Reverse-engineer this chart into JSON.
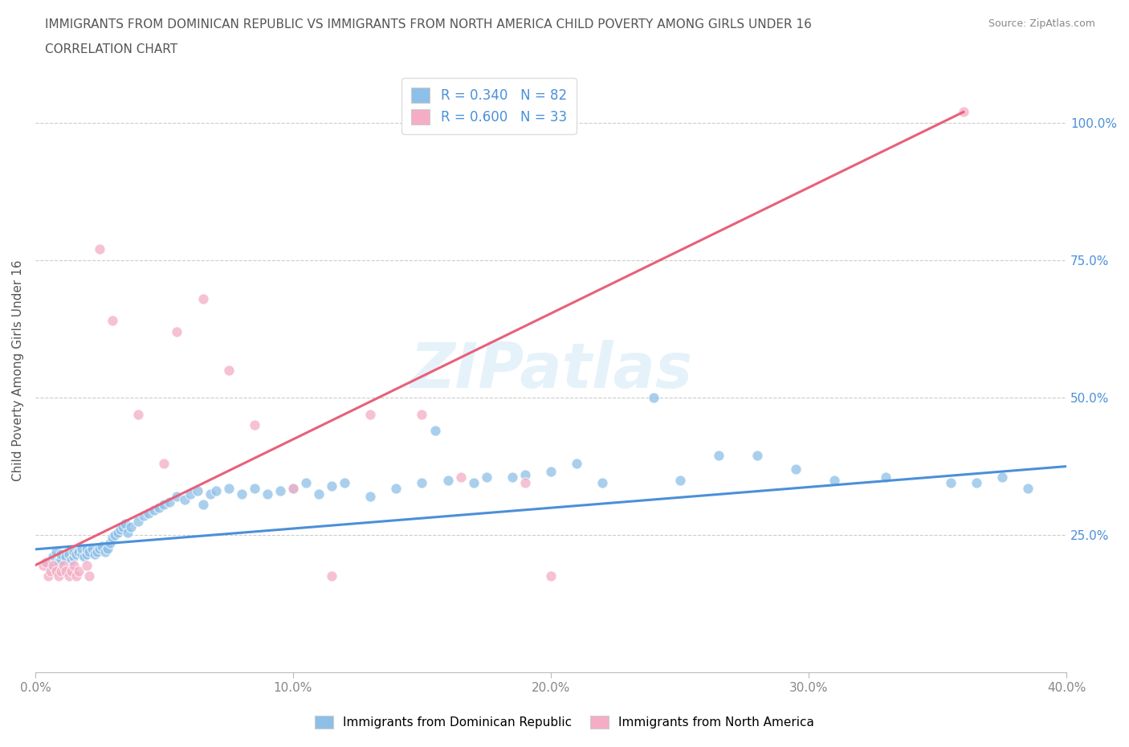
{
  "title_line1": "IMMIGRANTS FROM DOMINICAN REPUBLIC VS IMMIGRANTS FROM NORTH AMERICA CHILD POVERTY AMONG GIRLS UNDER 16",
  "title_line2": "CORRELATION CHART",
  "source": "Source: ZipAtlas.com",
  "ylabel": "Child Poverty Among Girls Under 16",
  "xlim": [
    0.0,
    0.4
  ],
  "ylim": [
    0.0,
    1.1
  ],
  "xtick_labels": [
    "0.0%",
    "10.0%",
    "20.0%",
    "30.0%",
    "40.0%"
  ],
  "xtick_vals": [
    0.0,
    0.1,
    0.2,
    0.3,
    0.4
  ],
  "ytick_labels": [
    "25.0%",
    "50.0%",
    "75.0%",
    "100.0%"
  ],
  "ytick_vals": [
    0.25,
    0.5,
    0.75,
    1.0
  ],
  "blue_color": "#8dc0e8",
  "pink_color": "#f4adc4",
  "blue_line_color": "#4a90d9",
  "pink_line_color": "#e8607a",
  "legend_text_color": "#4a90d9",
  "title_color": "#555555",
  "watermark": "ZIPatlas",
  "legend_R1": "R = 0.340",
  "legend_N1": "N = 82",
  "legend_R2": "R = 0.600",
  "legend_N2": "N = 33",
  "legend_label1": "Immigrants from Dominican Republic",
  "legend_label2": "Immigrants from North America",
  "blue_line": [
    0.0,
    0.224,
    0.4,
    0.375
  ],
  "pink_line": [
    0.0,
    0.195,
    0.36,
    1.02
  ],
  "blue_scatter_x": [
    0.005,
    0.007,
    0.008,
    0.009,
    0.01,
    0.01,
    0.012,
    0.013,
    0.014,
    0.015,
    0.015,
    0.016,
    0.017,
    0.018,
    0.018,
    0.019,
    0.02,
    0.02,
    0.021,
    0.022,
    0.023,
    0.024,
    0.025,
    0.026,
    0.027,
    0.028,
    0.029,
    0.03,
    0.031,
    0.032,
    0.033,
    0.034,
    0.035,
    0.036,
    0.037,
    0.04,
    0.042,
    0.044,
    0.046,
    0.048,
    0.05,
    0.052,
    0.055,
    0.058,
    0.06,
    0.063,
    0.065,
    0.068,
    0.07,
    0.075,
    0.08,
    0.085,
    0.09,
    0.095,
    0.1,
    0.105,
    0.11,
    0.115,
    0.12,
    0.13,
    0.14,
    0.15,
    0.155,
    0.16,
    0.17,
    0.175,
    0.185,
    0.19,
    0.2,
    0.21,
    0.22,
    0.24,
    0.25,
    0.265,
    0.28,
    0.295,
    0.31,
    0.33,
    0.355,
    0.365,
    0.375,
    0.385
  ],
  "blue_scatter_y": [
    0.195,
    0.21,
    0.22,
    0.2,
    0.205,
    0.215,
    0.21,
    0.215,
    0.205,
    0.21,
    0.22,
    0.215,
    0.22,
    0.215,
    0.225,
    0.21,
    0.215,
    0.225,
    0.22,
    0.225,
    0.215,
    0.22,
    0.225,
    0.23,
    0.22,
    0.225,
    0.235,
    0.245,
    0.25,
    0.255,
    0.26,
    0.265,
    0.27,
    0.255,
    0.265,
    0.275,
    0.285,
    0.29,
    0.295,
    0.3,
    0.305,
    0.31,
    0.32,
    0.315,
    0.325,
    0.33,
    0.305,
    0.325,
    0.33,
    0.335,
    0.325,
    0.335,
    0.325,
    0.33,
    0.335,
    0.345,
    0.325,
    0.34,
    0.345,
    0.32,
    0.335,
    0.345,
    0.44,
    0.35,
    0.345,
    0.355,
    0.355,
    0.36,
    0.365,
    0.38,
    0.345,
    0.5,
    0.35,
    0.395,
    0.395,
    0.37,
    0.35,
    0.355,
    0.345,
    0.345,
    0.355,
    0.335
  ],
  "pink_scatter_x": [
    0.003,
    0.004,
    0.005,
    0.006,
    0.007,
    0.008,
    0.009,
    0.01,
    0.011,
    0.012,
    0.013,
    0.014,
    0.015,
    0.016,
    0.017,
    0.02,
    0.021,
    0.025,
    0.03,
    0.04,
    0.05,
    0.055,
    0.065,
    0.075,
    0.085,
    0.1,
    0.115,
    0.13,
    0.15,
    0.165,
    0.19,
    0.2,
    0.36
  ],
  "pink_scatter_y": [
    0.195,
    0.2,
    0.175,
    0.185,
    0.195,
    0.185,
    0.175,
    0.185,
    0.195,
    0.185,
    0.175,
    0.185,
    0.195,
    0.175,
    0.185,
    0.195,
    0.175,
    0.77,
    0.64,
    0.47,
    0.38,
    0.62,
    0.68,
    0.55,
    0.45,
    0.335,
    0.175,
    0.47,
    0.47,
    0.355,
    0.345,
    0.175,
    1.02
  ]
}
